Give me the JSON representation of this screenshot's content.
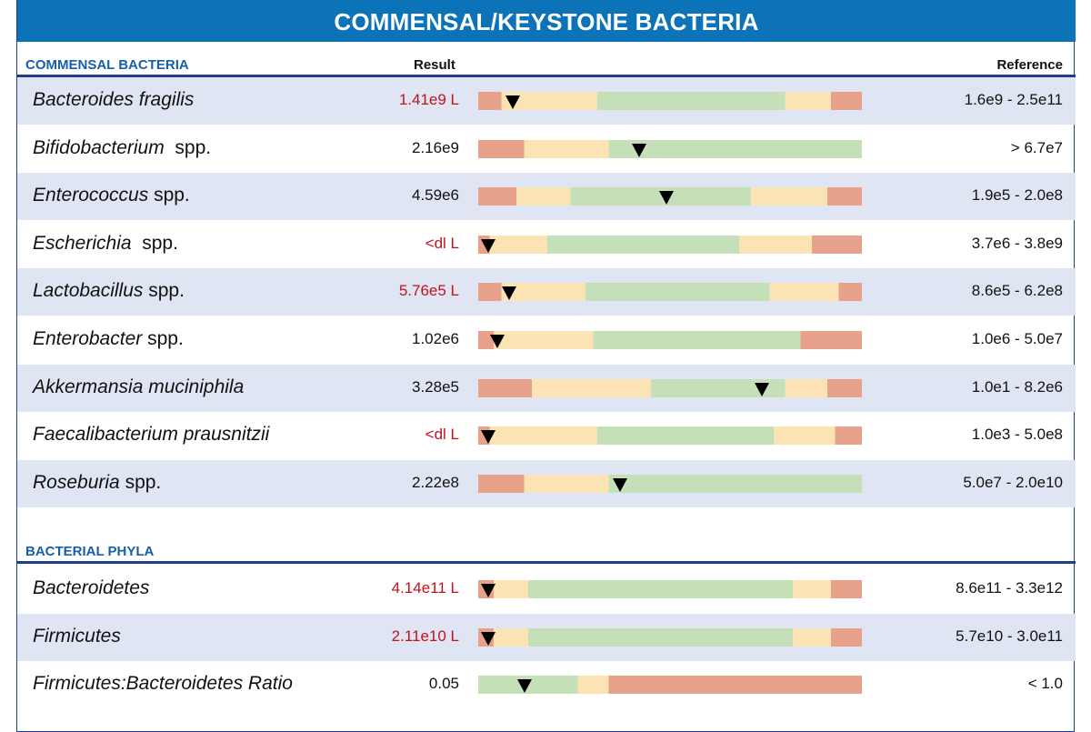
{
  "title": "COMMENSAL/KEYSTONE BACTERIA",
  "colors": {
    "red": "#e8a28c",
    "yellow": "#fbe3b3",
    "green": "#c5dfb9",
    "marker": "#000000",
    "low_text": "#c0121d"
  },
  "sections": [
    {
      "title": "COMMENSAL BACTERIA",
      "result_header": "Result",
      "reference_header": "Reference",
      "rows": [
        {
          "name": "Bacteroides fragilis",
          "suffix": "",
          "result": "1.41e9 L",
          "low": true,
          "reference": "1.6e9 - 2.5e11",
          "marker": 0.09,
          "bar": [
            [
              "r",
              0,
              0.06
            ],
            [
              "y",
              0.06,
              0.09
            ],
            [
              "y",
              0.09,
              0.31
            ],
            [
              "g",
              0.31,
              0.34
            ],
            [
              "g",
              0.34,
              0.8
            ],
            [
              "y",
              0.8,
              0.86
            ],
            [
              "y",
              0.86,
              0.92
            ],
            [
              "r",
              0.92,
              1
            ]
          ]
        },
        {
          "name": "Bifidobacterium",
          "suffix": "  spp.",
          "result": "2.16e9",
          "low": false,
          "reference": "> 6.7e7",
          "marker": 0.42,
          "bar": [
            [
              "r",
              0,
              0.12
            ],
            [
              "y",
              0.12,
              0.16
            ],
            [
              "y",
              0.16,
              0.34
            ],
            [
              "g",
              0.34,
              0.4
            ],
            [
              "g",
              0.4,
              1
            ]
          ]
        },
        {
          "name": "Enterococcus",
          "suffix": " spp.",
          "result": "4.59e6",
          "low": false,
          "reference": "1.9e5 - 2.0e8",
          "marker": 0.49,
          "bar": [
            [
              "r",
              0,
              0.1
            ],
            [
              "y",
              0.1,
              0.15
            ],
            [
              "y",
              0.15,
              0.24
            ],
            [
              "g",
              0.24,
              0.28
            ],
            [
              "g",
              0.28,
              0.71
            ],
            [
              "y",
              0.71,
              0.76
            ],
            [
              "y",
              0.76,
              0.91
            ],
            [
              "r",
              0.91,
              1
            ]
          ]
        },
        {
          "name": "Escherichia",
          "suffix": "  spp.",
          "result": "<dl L",
          "low": true,
          "reference": "3.7e6 - 3.8e9",
          "marker": 0.025,
          "bar": [
            [
              "r",
              0,
              0.03
            ],
            [
              "y",
              0.03,
              0.06
            ],
            [
              "y",
              0.06,
              0.18
            ],
            [
              "g",
              0.18,
              0.21
            ],
            [
              "g",
              0.21,
              0.68
            ],
            [
              "y",
              0.68,
              0.72
            ],
            [
              "y",
              0.72,
              0.87
            ],
            [
              "r",
              0.87,
              1
            ]
          ]
        },
        {
          "name": "Lactobacillus",
          "suffix": " spp.",
          "result": "5.76e5 L",
          "low": true,
          "reference": "8.6e5 - 6.2e8",
          "marker": 0.08,
          "bar": [
            [
              "r",
              0,
              0.06
            ],
            [
              "y",
              0.06,
              0.09
            ],
            [
              "y",
              0.09,
              0.28
            ],
            [
              "g",
              0.28,
              0.32
            ],
            [
              "g",
              0.32,
              0.76
            ],
            [
              "y",
              0.76,
              0.8
            ],
            [
              "y",
              0.8,
              0.94
            ],
            [
              "r",
              0.94,
              1
            ]
          ]
        },
        {
          "name": "Enterobacter",
          "suffix": " spp.",
          "result": "1.02e6",
          "low": false,
          "reference": "1.0e6 - 5.0e7",
          "marker": 0.05,
          "bar": [
            [
              "r",
              0,
              0.04
            ],
            [
              "y",
              0.04,
              0.07
            ],
            [
              "y",
              0.07,
              0.3
            ],
            [
              "g",
              0.3,
              0.33
            ],
            [
              "g",
              0.33,
              0.84
            ],
            [
              "r",
              0.84,
              1
            ]
          ]
        },
        {
          "name": "Akkermansia muciniphila",
          "suffix": "",
          "result": "3.28e5",
          "low": false,
          "reference": "1.0e1 - 8.2e6",
          "marker": 0.74,
          "bar": [
            [
              "r",
              0,
              0.14
            ],
            [
              "y",
              0.14,
              0.18
            ],
            [
              "y",
              0.18,
              0.45
            ],
            [
              "g",
              0.45,
              0.49
            ],
            [
              "g",
              0.49,
              0.8
            ],
            [
              "y",
              0.8,
              0.84
            ],
            [
              "y",
              0.84,
              0.91
            ],
            [
              "r",
              0.91,
              1
            ]
          ]
        },
        {
          "name": "Faecalibacterium prausnitzii",
          "suffix": "",
          "result": "<dl L",
          "low": true,
          "reference": "1.0e3 - 5.0e8",
          "marker": 0.025,
          "bar": [
            [
              "r",
              0,
              0.03
            ],
            [
              "y",
              0.03,
              0.07
            ],
            [
              "y",
              0.07,
              0.31
            ],
            [
              "g",
              0.31,
              0.35
            ],
            [
              "g",
              0.35,
              0.77
            ],
            [
              "y",
              0.77,
              0.82
            ],
            [
              "y",
              0.82,
              0.93
            ],
            [
              "r",
              0.93,
              1
            ]
          ]
        },
        {
          "name": "Roseburia",
          "suffix": " spp.",
          "result": "2.22e8",
          "low": false,
          "reference": "5.0e7 - 2.0e10",
          "marker": 0.37,
          "bar": [
            [
              "r",
              0,
              0.12
            ],
            [
              "y",
              0.12,
              0.16
            ],
            [
              "y",
              0.16,
              0.34
            ],
            [
              "g",
              0.34,
              0.38
            ],
            [
              "g",
              0.38,
              1
            ]
          ]
        }
      ]
    },
    {
      "title": "BACTERIAL PHYLA",
      "result_header": "",
      "reference_header": "",
      "rows": [
        {
          "name": "Bacteroidetes",
          "suffix": "",
          "result": "4.14e11 L",
          "low": true,
          "reference": "8.6e11 - 3.3e12",
          "marker": 0.025,
          "bar": [
            [
              "r",
              0,
              0.04
            ],
            [
              "y",
              0.04,
              0.08
            ],
            [
              "y",
              0.08,
              0.13
            ],
            [
              "g",
              0.13,
              0.17
            ],
            [
              "g",
              0.17,
              0.82
            ],
            [
              "y",
              0.82,
              0.86
            ],
            [
              "y",
              0.86,
              0.92
            ],
            [
              "r",
              0.92,
              1
            ]
          ]
        },
        {
          "name": "Firmicutes",
          "suffix": "",
          "result": "2.11e10 L",
          "low": true,
          "reference": "5.7e10 - 3.0e11",
          "marker": 0.025,
          "bar": [
            [
              "r",
              0,
              0.04
            ],
            [
              "y",
              0.04,
              0.08
            ],
            [
              "y",
              0.08,
              0.13
            ],
            [
              "g",
              0.13,
              0.17
            ],
            [
              "g",
              0.17,
              0.82
            ],
            [
              "y",
              0.82,
              0.86
            ],
            [
              "y",
              0.86,
              0.92
            ],
            [
              "r",
              0.92,
              1
            ]
          ]
        },
        {
          "name": "Firmicutes:Bacteroidetes Ratio",
          "suffix": "",
          "result": "0.05",
          "low": false,
          "reference": "< 1.0",
          "marker": 0.12,
          "bar": [
            [
              "g",
              0,
              0.26
            ],
            [
              "y",
              0.26,
              0.3
            ],
            [
              "y",
              0.3,
              0.34
            ],
            [
              "r",
              0.34,
              0.38
            ],
            [
              "r",
              0.38,
              1
            ]
          ]
        }
      ]
    }
  ]
}
